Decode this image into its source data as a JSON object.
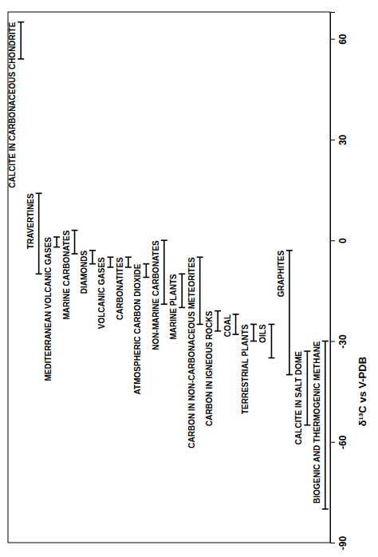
{
  "chart_data": {
    "type": "range",
    "y_label": "δ¹³C vs V-PDB",
    "categories": [
      "CALCITE IN CARBONACEOUS CHONDRITE",
      "TRAVERTINES",
      "MEDITERRANEAN VOLCANIC GASES",
      "MARINE CARBONATES",
      "DIAMONDS",
      "VOLCANIC GASES",
      "CARBONATITES",
      "ATMOSPHERIC CARBON DIOXIDE",
      "NON-MARINE CARBONATES",
      "MARINE PLANTS",
      "CARBON IN NON-CARBONACEOUS METEORITES",
      "CARBON IN IGNEOUS ROCKS",
      "COAL",
      "TERRESTRIAL PLANTS",
      "OILS",
      "GRAPHITES",
      "CALCITE IN SALT DOME",
      "BIOGENIC AND THERMOGENIC METHANE"
    ],
    "values": [
      [
        54,
        65
      ],
      [
        -10,
        14
      ],
      [
        -2,
        1
      ],
      [
        -4,
        3
      ],
      [
        -7,
        -3
      ],
      [
        -8,
        -5
      ],
      [
        -8,
        -5
      ],
      [
        -11,
        -7
      ],
      [
        -19,
        0
      ],
      [
        -20,
        -10
      ],
      [
        -25,
        -5
      ],
      [
        -27,
        -21
      ],
      [
        -28,
        -22
      ],
      [
        -30,
        -25
      ],
      [
        -35,
        -25
      ],
      [
        -40,
        -3
      ],
      [
        -55,
        -33
      ],
      [
        -80,
        -30
      ]
    ],
    "color": "#000000",
    "ylim": [
      -90,
      68
    ],
    "yticks": [
      -90,
      -60,
      -30,
      0,
      30,
      60
    ],
    "grid": false
  }
}
